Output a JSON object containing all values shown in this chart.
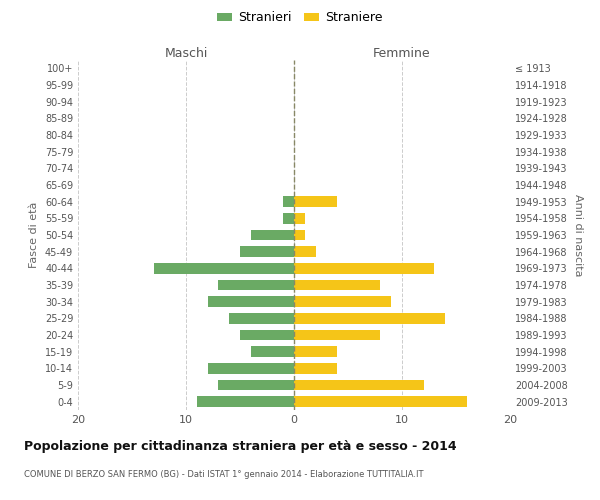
{
  "age_groups": [
    "100+",
    "95-99",
    "90-94",
    "85-89",
    "80-84",
    "75-79",
    "70-74",
    "65-69",
    "60-64",
    "55-59",
    "50-54",
    "45-49",
    "40-44",
    "35-39",
    "30-34",
    "25-29",
    "20-24",
    "15-19",
    "10-14",
    "5-9",
    "0-4"
  ],
  "birth_years": [
    "≤ 1913",
    "1914-1918",
    "1919-1923",
    "1924-1928",
    "1929-1933",
    "1934-1938",
    "1939-1943",
    "1944-1948",
    "1949-1953",
    "1954-1958",
    "1959-1963",
    "1964-1968",
    "1969-1973",
    "1974-1978",
    "1979-1983",
    "1984-1988",
    "1989-1993",
    "1994-1998",
    "1999-2003",
    "2004-2008",
    "2009-2013"
  ],
  "males": [
    0,
    0,
    0,
    0,
    0,
    0,
    0,
    0,
    1,
    1,
    4,
    5,
    13,
    7,
    8,
    6,
    5,
    4,
    8,
    7,
    9
  ],
  "females": [
    0,
    0,
    0,
    0,
    0,
    0,
    0,
    0,
    4,
    1,
    1,
    2,
    13,
    8,
    9,
    14,
    8,
    4,
    4,
    12,
    16
  ],
  "male_color": "#6aaa64",
  "female_color": "#f5c518",
  "title": "Popolazione per cittadinanza straniera per età e sesso - 2014",
  "subtitle": "COMUNE DI BERZO SAN FERMO (BG) - Dati ISTAT 1° gennaio 2014 - Elaborazione TUTTITALIA.IT",
  "legend_male": "Stranieri",
  "legend_female": "Straniere",
  "xlim": 20,
  "maschi_label": "Maschi",
  "femmine_label": "Femmine",
  "fasce_label": "Fasce di età",
  "anni_label": "Anni di nascita",
  "background_color": "#ffffff",
  "grid_color": "#cccccc"
}
